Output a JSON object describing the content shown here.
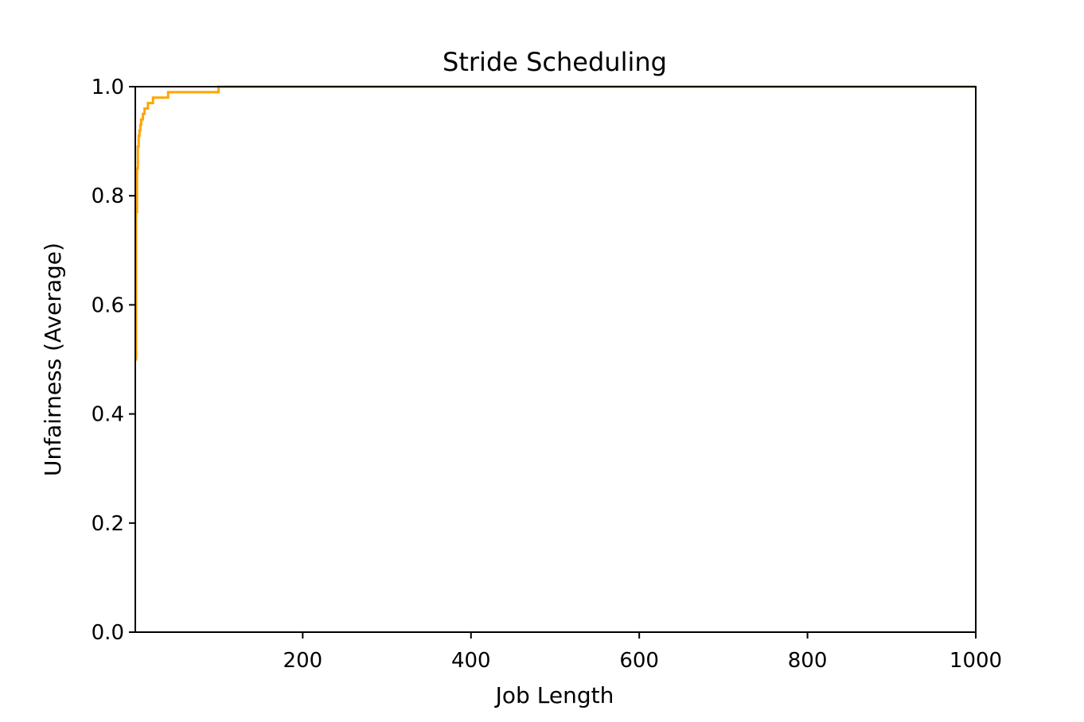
{
  "chart_data": {
    "type": "line",
    "title": "Stride Scheduling",
    "xlabel": "Job Length",
    "ylabel": "Unfairness (Average)",
    "xlim": [
      1,
      1000
    ],
    "ylim": [
      0.0,
      1.0
    ],
    "xticks": [
      200,
      400,
      600,
      800,
      1000
    ],
    "xtick_labels": [
      "200",
      "400",
      "600",
      "800",
      "1000"
    ],
    "yticks": [
      0.0,
      0.2,
      0.4,
      0.6,
      0.8,
      1.0
    ],
    "ytick_labels": [
      "0.0",
      "0.2",
      "0.4",
      "0.6",
      "0.8",
      "1.0"
    ],
    "grid": false,
    "series": [
      {
        "color": "#ffa500",
        "x": [
          1,
          2,
          3,
          4,
          5,
          6,
          7,
          8,
          10,
          12,
          14,
          16,
          19,
          22,
          26,
          33,
          40,
          50,
          70,
          99,
          100,
          101,
          150,
          300,
          500,
          700,
          1000
        ],
        "y": [
          0.5,
          0.77,
          0.85,
          0.89,
          0.91,
          0.92,
          0.93,
          0.94,
          0.95,
          0.96,
          0.96,
          0.97,
          0.97,
          0.98,
          0.98,
          0.98,
          0.99,
          0.99,
          0.99,
          0.99,
          1.0,
          1.0,
          1.0,
          1.0,
          1.0,
          1.0,
          1.0
        ]
      }
    ]
  }
}
